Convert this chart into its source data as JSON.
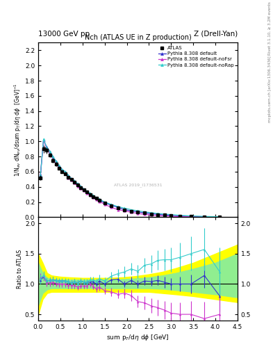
{
  "title_left": "13000 GeV pp",
  "title_right": "Z (Drell-Yan)",
  "plot_title": "Nch (ATLAS UE in Z production)",
  "xlabel": "sum p$_T$/d$\\eta$ d$\\phi$ [GeV]",
  "ylabel_main": "1/N$_{ev}$ dN$_{ev}$/dsum p$_T$/d$\\eta$ d$\\phi$  [GeV]$^{-1}$",
  "ylabel_ratio": "Ratio to ATLAS",
  "watermark": "ATLAS 2019_I1736531",
  "xlim": [
    0,
    4.5
  ],
  "ylim_main": [
    0,
    2.3
  ],
  "ylim_ratio": [
    0.4,
    2.1
  ],
  "atlas_x": [
    0.05,
    0.12,
    0.19,
    0.26,
    0.33,
    0.4,
    0.47,
    0.54,
    0.61,
    0.68,
    0.75,
    0.82,
    0.89,
    0.96,
    1.03,
    1.1,
    1.17,
    1.24,
    1.31,
    1.38,
    1.5,
    1.65,
    1.8,
    1.95,
    2.1,
    2.25,
    2.4,
    2.55,
    2.7,
    2.85,
    3.0,
    3.2,
    3.45,
    3.75,
    4.1
  ],
  "atlas_y": [
    0.52,
    0.9,
    0.88,
    0.82,
    0.75,
    0.7,
    0.65,
    0.6,
    0.57,
    0.53,
    0.5,
    0.46,
    0.43,
    0.39,
    0.36,
    0.33,
    0.3,
    0.27,
    0.25,
    0.22,
    0.19,
    0.15,
    0.12,
    0.1,
    0.08,
    0.07,
    0.055,
    0.045,
    0.036,
    0.03,
    0.025,
    0.018,
    0.012,
    0.007,
    0.004
  ],
  "atlas_yerr": [
    0.03,
    0.05,
    0.04,
    0.03,
    0.03,
    0.025,
    0.025,
    0.022,
    0.02,
    0.018,
    0.016,
    0.015,
    0.013,
    0.012,
    0.011,
    0.01,
    0.009,
    0.008,
    0.007,
    0.007,
    0.006,
    0.005,
    0.004,
    0.003,
    0.003,
    0.002,
    0.002,
    0.002,
    0.0015,
    0.0012,
    0.001,
    0.0008,
    0.0006,
    0.0004,
    0.0003
  ],
  "py_default_y": [
    0.55,
    1.01,
    0.93,
    0.87,
    0.8,
    0.74,
    0.68,
    0.63,
    0.6,
    0.55,
    0.51,
    0.48,
    0.44,
    0.41,
    0.37,
    0.34,
    0.31,
    0.28,
    0.25,
    0.23,
    0.19,
    0.16,
    0.13,
    0.1,
    0.085,
    0.07,
    0.058,
    0.047,
    0.038,
    0.031,
    0.025,
    0.018,
    0.012,
    0.008,
    0.004
  ],
  "py_default_color": "#3333cc",
  "py_noFsr_y": [
    0.57,
    1.02,
    0.9,
    0.84,
    0.77,
    0.71,
    0.65,
    0.6,
    0.57,
    0.52,
    0.49,
    0.45,
    0.41,
    0.38,
    0.35,
    0.32,
    0.29,
    0.26,
    0.23,
    0.21,
    0.17,
    0.13,
    0.1,
    0.085,
    0.065,
    0.05,
    0.038,
    0.029,
    0.022,
    0.017,
    0.013,
    0.009,
    0.006,
    0.003,
    0.002
  ],
  "py_noFsr_color": "#cc33cc",
  "py_noRap_y": [
    0.56,
    1.03,
    0.92,
    0.87,
    0.8,
    0.74,
    0.68,
    0.63,
    0.6,
    0.55,
    0.51,
    0.48,
    0.44,
    0.41,
    0.37,
    0.34,
    0.32,
    0.29,
    0.26,
    0.24,
    0.2,
    0.17,
    0.14,
    0.12,
    0.1,
    0.085,
    0.072,
    0.06,
    0.05,
    0.042,
    0.035,
    0.026,
    0.018,
    0.011,
    0.007
  ],
  "py_noRap_color": "#33cccc",
  "ratio_default_y": [
    1.06,
    1.12,
    1.05,
    1.06,
    1.07,
    1.06,
    1.05,
    1.05,
    1.05,
    1.04,
    1.02,
    1.04,
    1.02,
    1.05,
    1.03,
    1.03,
    1.03,
    1.04,
    1.0,
    1.05,
    1.0,
    1.07,
    1.08,
    1.0,
    1.06,
    1.0,
    1.05,
    1.04,
    1.06,
    1.03,
    1.0,
    1.0,
    1.0,
    1.14,
    0.8
  ],
  "ratio_default_err": [
    0.06,
    0.06,
    0.05,
    0.05,
    0.05,
    0.04,
    0.04,
    0.04,
    0.04,
    0.04,
    0.04,
    0.04,
    0.04,
    0.04,
    0.04,
    0.04,
    0.04,
    0.04,
    0.04,
    0.04,
    0.04,
    0.05,
    0.05,
    0.05,
    0.06,
    0.06,
    0.07,
    0.07,
    0.08,
    0.09,
    0.1,
    0.12,
    0.15,
    0.2,
    0.25
  ],
  "ratio_noFsr_y": [
    1.1,
    1.13,
    1.02,
    1.02,
    1.03,
    1.01,
    1.0,
    1.0,
    1.0,
    0.98,
    0.98,
    0.98,
    0.95,
    0.97,
    0.97,
    0.97,
    1.0,
    0.96,
    0.92,
    0.95,
    0.89,
    0.87,
    0.83,
    0.85,
    0.81,
    0.71,
    0.69,
    0.64,
    0.61,
    0.57,
    0.52,
    0.5,
    0.5,
    0.43,
    0.5
  ],
  "ratio_noFsr_err": [
    0.08,
    0.07,
    0.06,
    0.06,
    0.06,
    0.05,
    0.05,
    0.05,
    0.05,
    0.05,
    0.05,
    0.05,
    0.05,
    0.05,
    0.05,
    0.05,
    0.05,
    0.05,
    0.05,
    0.06,
    0.06,
    0.07,
    0.07,
    0.08,
    0.09,
    0.1,
    0.11,
    0.12,
    0.13,
    0.15,
    0.17,
    0.2,
    0.22,
    0.28,
    0.35
  ],
  "ratio_noRap_y": [
    1.08,
    1.14,
    1.05,
    1.06,
    1.07,
    1.06,
    1.05,
    1.05,
    1.05,
    1.04,
    1.02,
    1.04,
    1.02,
    1.05,
    1.03,
    1.03,
    1.07,
    1.07,
    1.04,
    1.09,
    1.05,
    1.13,
    1.17,
    1.2,
    1.25,
    1.21,
    1.31,
    1.33,
    1.39,
    1.4,
    1.4,
    1.44,
    1.5,
    1.57,
    1.2
  ],
  "ratio_noRap_err": [
    0.07,
    0.07,
    0.06,
    0.05,
    0.05,
    0.05,
    0.05,
    0.05,
    0.05,
    0.05,
    0.05,
    0.05,
    0.05,
    0.05,
    0.05,
    0.05,
    0.05,
    0.05,
    0.05,
    0.06,
    0.06,
    0.07,
    0.08,
    0.09,
    0.1,
    0.11,
    0.12,
    0.14,
    0.16,
    0.18,
    0.2,
    0.24,
    0.28,
    0.35,
    0.4
  ],
  "band_x": [
    0.0,
    0.1,
    0.2,
    0.3,
    0.5,
    0.7,
    1.0,
    1.3,
    1.6,
    1.9,
    2.2,
    2.5,
    2.8,
    3.1,
    3.5,
    4.0,
    4.5
  ],
  "band_yellow_lo": [
    0.5,
    0.75,
    0.85,
    0.87,
    0.87,
    0.87,
    0.87,
    0.87,
    0.87,
    0.87,
    0.87,
    0.87,
    0.85,
    0.83,
    0.8,
    0.75,
    0.7
  ],
  "band_yellow_hi": [
    1.5,
    1.35,
    1.18,
    1.14,
    1.12,
    1.11,
    1.1,
    1.1,
    1.1,
    1.11,
    1.13,
    1.16,
    1.2,
    1.26,
    1.35,
    1.5,
    1.65
  ],
  "band_green_lo": [
    0.65,
    0.85,
    0.91,
    0.93,
    0.93,
    0.93,
    0.93,
    0.93,
    0.93,
    0.93,
    0.93,
    0.93,
    0.92,
    0.9,
    0.87,
    0.83,
    0.78
  ],
  "band_green_hi": [
    1.35,
    1.18,
    1.1,
    1.08,
    1.07,
    1.07,
    1.07,
    1.07,
    1.07,
    1.08,
    1.09,
    1.11,
    1.14,
    1.18,
    1.25,
    1.35,
    1.5
  ]
}
